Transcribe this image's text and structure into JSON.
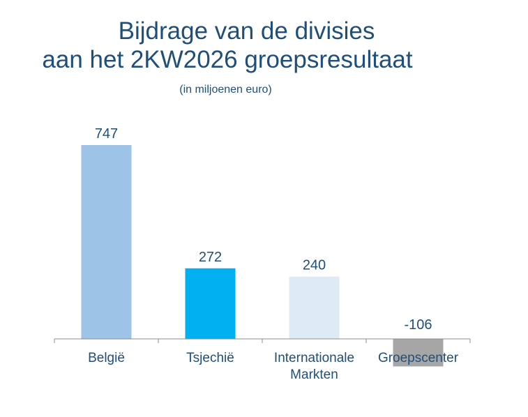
{
  "chart_data": {
    "type": "bar",
    "title_lines": [
      "Bijdrage van de divisies",
      "aan het 2KW2026 groepsresultaat"
    ],
    "subtitle": "(in miljoenen euro)",
    "categories": [
      [
        "België"
      ],
      [
        "Tsjechië"
      ],
      [
        "Internationale",
        "Markten"
      ],
      [
        "Groepscenter"
      ]
    ],
    "values": [
      747,
      272,
      240,
      -106
    ],
    "value_labels": [
      "747",
      "272",
      "240",
      "-106"
    ],
    "bar_colors": [
      "#9dc3e6",
      "#00b0f0",
      "#deebf7",
      "#a6a6a6"
    ],
    "xlabel": "",
    "ylabel": "",
    "grid": false
  }
}
